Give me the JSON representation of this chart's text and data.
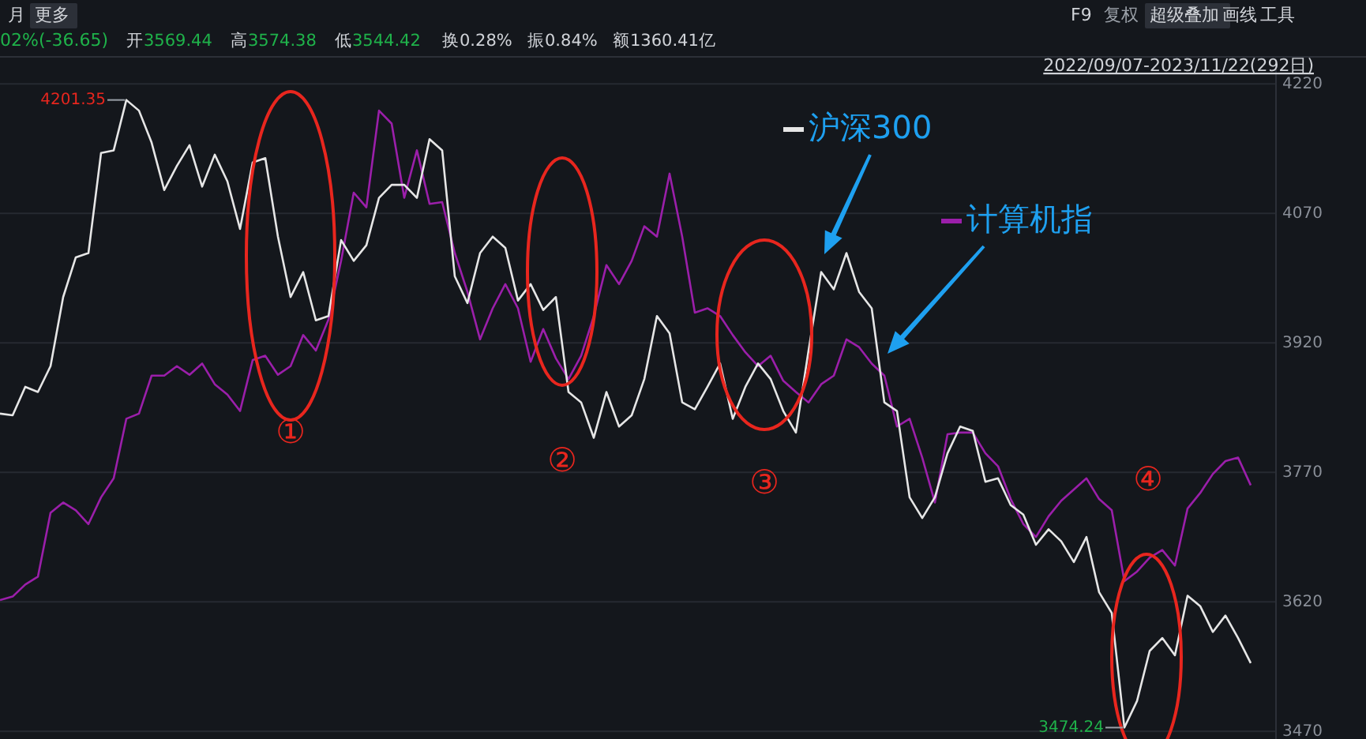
{
  "chart_data": {
    "type": "line",
    "categories": [
      null,
      null,
      null,
      null,
      null,
      null,
      null,
      null,
      null,
      null,
      null,
      null,
      null,
      null,
      null,
      null,
      null,
      null,
      null,
      null,
      null,
      null,
      null,
      null,
      null,
      null,
      null,
      null,
      null,
      null,
      null,
      null,
      null,
      null,
      null,
      null,
      null,
      null,
      null,
      null,
      null,
      null,
      null,
      null,
      null,
      null,
      null,
      null,
      null,
      null,
      null,
      null,
      null,
      null,
      null,
      null,
      null,
      null,
      null,
      null,
      null,
      null,
      null,
      null,
      null,
      null,
      null,
      null,
      null,
      null,
      null,
      null,
      null,
      null,
      null,
      null,
      null,
      null,
      null,
      null,
      null,
      null,
      null,
      null,
      null,
      null,
      null,
      null,
      null,
      null,
      null,
      null,
      null,
      null,
      null,
      null,
      null,
      null,
      null,
      null
    ],
    "series": [
      {
        "name": "沪深300",
        "color": "#e6e6e6",
        "values": [
          3838,
          3836,
          3869,
          3863,
          3893,
          3973,
          4019,
          4024,
          4140,
          4143,
          4201.35,
          4189,
          4152,
          4097,
          4125,
          4149,
          4101,
          4138,
          4107,
          4052,
          4129,
          4134,
          4043,
          3973,
          4002,
          3946,
          3951,
          4039,
          4015,
          4033,
          4088,
          4103,
          4103,
          4088,
          4156,
          4143,
          3997,
          3966,
          4024,
          4043,
          4030,
          3969,
          3988,
          3958,
          3973,
          3863,
          3851,
          3810,
          3863,
          3823,
          3836,
          3878,
          3951,
          3931,
          3851,
          3843,
          3869,
          3896,
          3832,
          3869,
          3896,
          3878,
          3841,
          3816,
          3911,
          4002,
          3982,
          4024,
          3979,
          3960,
          3851,
          3841,
          3741,
          3717,
          3741,
          3792,
          3823,
          3818,
          3759,
          3763,
          3732,
          3721,
          3686,
          3704,
          3690,
          3666,
          3695,
          3631,
          3607,
          3474.24,
          3505,
          3563,
          3578,
          3558,
          3627,
          3615,
          3585,
          3604,
          3578,
          3549
        ]
      },
      {
        "name": "计算机指",
        "color": "#9b1faa",
        "values": [
          3622,
          3626,
          3640,
          3649,
          3723,
          3735,
          3726,
          3710,
          3741,
          3763,
          3832,
          3838,
          3882,
          3882,
          3893,
          3883,
          3896,
          3872,
          3860,
          3841,
          3900,
          3905,
          3883,
          3893,
          3929,
          3911,
          3947,
          4015,
          4094,
          4077,
          4189,
          4174,
          4088,
          4143,
          4081,
          4083,
          4024,
          3979,
          3924,
          3960,
          3988,
          3960,
          3898,
          3936,
          3902,
          3878,
          3905,
          3951,
          4010,
          3988,
          4015,
          4055,
          4043,
          4116,
          4043,
          3955,
          3960,
          3951,
          3929,
          3909,
          3893,
          3905,
          3876,
          3863,
          3851,
          3872,
          3882,
          3924,
          3915,
          3896,
          3882,
          3823,
          3832,
          3787,
          3735,
          3814,
          3816,
          3816,
          3792,
          3777,
          3739,
          3710,
          3695,
          3719,
          3737,
          3750,
          3763,
          3739,
          3726,
          3644,
          3655,
          3671,
          3680,
          3662,
          3728,
          3746,
          3768,
          3783,
          3787,
          3755
        ]
      }
    ],
    "ylim": [
      3461,
      4244
    ],
    "yticks": [
      4220,
      4070,
      3920,
      3770,
      3620,
      3470
    ],
    "grid": "y",
    "legend": "top right",
    "annotations": [
      "月",
      "更多",
      "02%(-36.65)",
      "开3569.44",
      "高3574.38",
      "低3544.42",
      "换0.28%",
      "振0.84%",
      "额1360.41亿",
      "F9",
      "复权",
      "超级叠加",
      "画线",
      "工具",
      "2022/09/07-2023/11/22(292日)",
      "①",
      "②",
      "③",
      "④",
      "4201.35",
      "3474.24"
    ]
  }
}
